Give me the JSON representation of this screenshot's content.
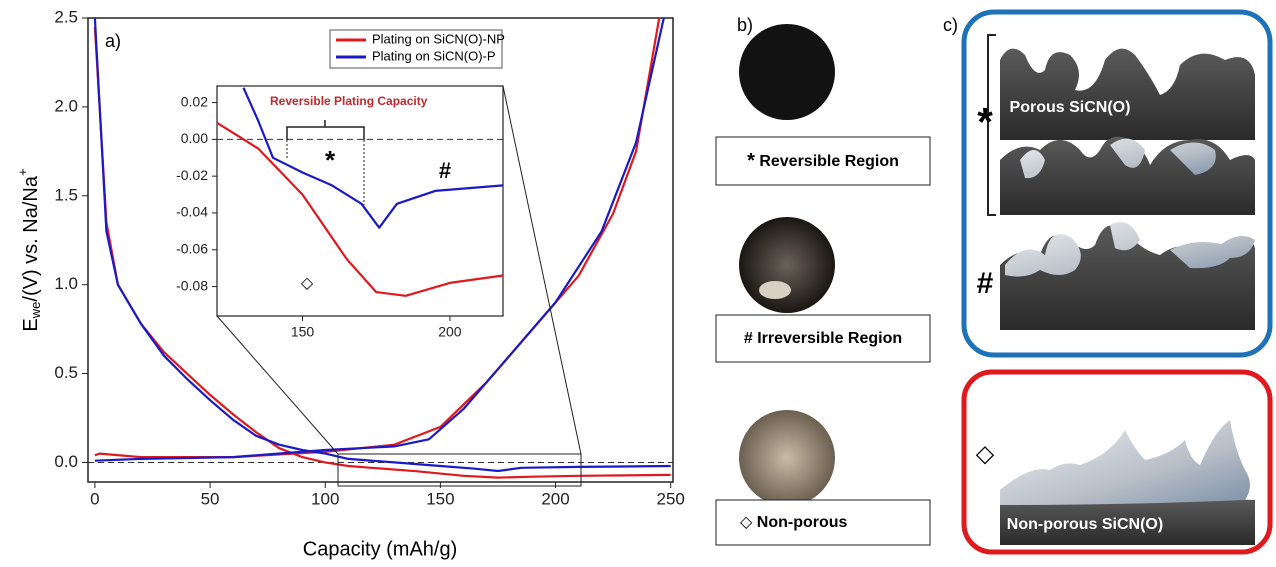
{
  "chart_data": [
    {
      "type": "line",
      "panel_label": "a)",
      "xlabel": "Capacity (mAh/g)",
      "ylabel": {
        "main": "E",
        "sub": "we",
        "rest": "/(V) vs. Na/Na",
        "sup": "+"
      },
      "xlim": [
        -3,
        251
      ],
      "ylim": [
        -0.11,
        2.5
      ],
      "xticks": [
        0,
        50,
        100,
        150,
        200,
        250
      ],
      "yticks": [
        {
          "value": 0,
          "label": "0.0"
        },
        0.5,
        {
          "value": 1,
          "label": "1.0"
        },
        1.5,
        {
          "value": 2,
          "label": "2.0"
        },
        2.5
      ],
      "legend": "upper right",
      "series": [
        {
          "name": "Plating on SiCN(O)-NP",
          "color": "#e0191e",
          "x": [
            0,
            5,
            10,
            20,
            30,
            40,
            50,
            60,
            70,
            80,
            90,
            100,
            110,
            120,
            140,
            160,
            175,
            190,
            210,
            250,
            null,
            0,
            2,
            20,
            60,
            100,
            130,
            150,
            170,
            190,
            210,
            225,
            235,
            245
          ],
          "values": [
            2.45,
            1.35,
            1.0,
            0.78,
            0.62,
            0.5,
            0.38,
            0.27,
            0.17,
            0.08,
            0.03,
            0.0,
            -0.02,
            -0.03,
            -0.05,
            -0.075,
            -0.085,
            -0.08,
            -0.075,
            -0.07,
            null,
            0.04,
            0.05,
            0.03,
            0.03,
            0.06,
            0.1,
            0.2,
            0.45,
            0.75,
            1.05,
            1.4,
            1.75,
            2.5
          ]
        },
        {
          "name": "Plating on SiCN(O)-P",
          "color": "#1a1ac8",
          "x": [
            0,
            5,
            10,
            20,
            30,
            40,
            50,
            60,
            70,
            80,
            90,
            100,
            110,
            130,
            150,
            165,
            175,
            185,
            210,
            250,
            null,
            0,
            20,
            60,
            100,
            130,
            145,
            160,
            180,
            200,
            220,
            235,
            247
          ],
          "values": [
            2.5,
            1.3,
            1.0,
            0.78,
            0.6,
            0.47,
            0.35,
            0.24,
            0.15,
            0.1,
            0.07,
            0.05,
            0.02,
            0.0,
            -0.02,
            -0.035,
            -0.048,
            -0.03,
            -0.025,
            -0.02,
            null,
            0.01,
            0.02,
            0.03,
            0.07,
            0.09,
            0.13,
            0.3,
            0.6,
            0.9,
            1.3,
            1.8,
            2.5
          ]
        }
      ]
    },
    {
      "type": "line",
      "xlim": [
        121,
        218
      ],
      "ylim": [
        -0.096,
        0.029
      ],
      "xticks": [
        150,
        200
      ],
      "yticks": [
        0.02,
        {
          "value": 0,
          "label": "0.00"
        },
        -0.02,
        -0.04,
        -0.06,
        -0.08
      ],
      "annotations": [
        "Reversible Plating Capacity",
        "*",
        "#",
        "◇"
      ],
      "series": [
        {
          "color": "#e0191e",
          "x": [
            121,
            135,
            150,
            165,
            175,
            185,
            200,
            218
          ],
          "values": [
            0.009,
            -0.005,
            -0.03,
            -0.065,
            -0.083,
            -0.085,
            -0.078,
            -0.074
          ]
        },
        {
          "color": "#1a1ac8",
          "x": [
            130,
            135,
            140,
            150,
            160,
            170,
            176,
            182,
            195,
            218
          ],
          "values": [
            0.028,
            0.01,
            -0.01,
            -0.018,
            -0.025,
            -0.035,
            -0.048,
            -0.035,
            -0.028,
            -0.025
          ]
        }
      ]
    }
  ],
  "panel_b": {
    "label": "b)",
    "boxes": [
      {
        "marker": "*",
        "text": "Reversible Region"
      },
      {
        "marker": "#",
        "text": "Irreversible Region"
      },
      {
        "marker": "◇",
        "text": "Non-porous"
      }
    ]
  },
  "panel_c": {
    "label": "c)",
    "porous": "Porous SiCN(O)",
    "star": "*",
    "hash": "#",
    "diamond": "◇",
    "nonporous": "Non-porous SiCN(O)"
  }
}
